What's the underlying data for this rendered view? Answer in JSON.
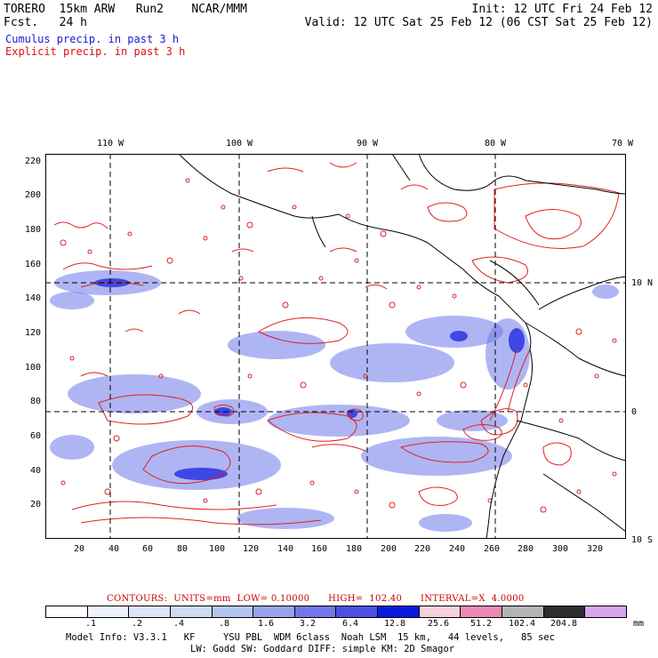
{
  "header": {
    "title_left": "TORERO  15km ARW   Run2    NCAR/MMM",
    "fcst_line": "Fcst.   24 h",
    "init": "Init: 12 UTC Fri 24 Feb 12",
    "valid": "Valid: 12 UTC Sat 25 Feb 12 (06 CST Sat 25 Feb 12)"
  },
  "legend": {
    "cumulus": "Cumulus precip. in past 3 h",
    "explicit": "Explicit precip. in past 3 h"
  },
  "map": {
    "longitude_labels": [
      "110 W",
      "100 W",
      "90 W",
      "80 W",
      "70 W"
    ],
    "latitude_labels": [
      "10 N",
      "0",
      "10 S"
    ],
    "y_ticks": [
      "220",
      "200",
      "180",
      "160",
      "140",
      "120",
      "100",
      "80",
      "60",
      "40",
      "20"
    ],
    "x_ticks": [
      "20",
      "40",
      "60",
      "80",
      "100",
      "120",
      "140",
      "160",
      "180",
      "200",
      "220",
      "240",
      "260",
      "280",
      "300",
      "320"
    ],
    "colors": {
      "cumulus": "#5560e8",
      "explicit_contour": "#e02020",
      "coastline": "#000000",
      "gridline": "#000000"
    }
  },
  "contour_info": "CONTOURS:  UNITS=mm  LOW= 0.10000      HIGH=  102.40      INTERVAL=X  4.0000",
  "colorbar": {
    "labels": [
      ".1",
      ".2",
      ".4",
      ".8",
      "1.6",
      "3.2",
      "6.4",
      "12.8",
      "25.6",
      "51.2",
      "102.4",
      "204.8"
    ],
    "colors": [
      "#ffffff",
      "#eef2fb",
      "#dde4f7",
      "#cddbf4",
      "#b4c6f0",
      "#9aa2ee",
      "#7377ea",
      "#4c50e6",
      "#0b1ae0",
      "#f6d2da",
      "#ee88b4",
      "#b4b4b4",
      "#2e2e2e",
      "#d8a4f0"
    ],
    "unit": "mm"
  },
  "footer": {
    "line1": "Model Info: V3.3.1   KF     YSU PBL  WDM 6class  Noah LSM  15 km,   44 levels,   85 sec",
    "line2": "LW: Godd SW: Goddard DIFF: simple KM: 2D Smagor"
  }
}
